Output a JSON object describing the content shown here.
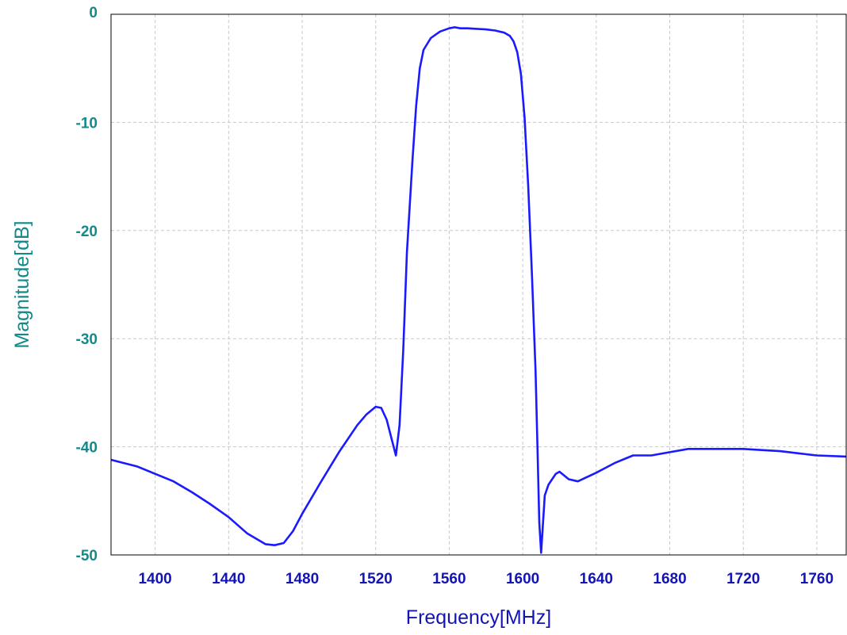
{
  "chart_data": {
    "type": "line",
    "title": "",
    "xlabel": "Frequency[MHz]",
    "ylabel": "Magnitude[dB]",
    "xlim": [
      1376,
      1776
    ],
    "ylim": [
      -50,
      0
    ],
    "x_ticks": [
      1400,
      1440,
      1480,
      1520,
      1560,
      1600,
      1640,
      1680,
      1720,
      1760
    ],
    "x_tick_labels": [
      "1400",
      "1440",
      "1480",
      "1520",
      "1560",
      "1600",
      "1640",
      "1680",
      "1720",
      "1760"
    ],
    "y_ticks": [
      0,
      -10,
      -20,
      -30,
      -40,
      -50
    ],
    "y_tick_labels": [
      "0",
      "-10",
      "-20",
      "-30",
      "-40",
      "-50"
    ],
    "grid": true,
    "legend": "none",
    "colors": {
      "line": "#1a1aff",
      "axis_text_x": "#1414b4",
      "axis_text_y": "#138a8a",
      "grid": "#c8c8c8",
      "frame": "#000000"
    },
    "series": [
      {
        "x": [
          1376,
          1390,
          1400,
          1410,
          1420,
          1430,
          1440,
          1450,
          1460,
          1465,
          1470,
          1475,
          1480,
          1490,
          1500,
          1510,
          1515,
          1520,
          1523,
          1526,
          1529,
          1531,
          1533,
          1535,
          1537,
          1540,
          1542,
          1544,
          1546,
          1550,
          1555,
          1560,
          1563,
          1566,
          1570,
          1575,
          1580,
          1585,
          1590,
          1593,
          1595,
          1597,
          1599,
          1601,
          1603,
          1605,
          1607,
          1608,
          1609,
          1610,
          1612,
          1614,
          1616,
          1618,
          1620,
          1625,
          1630,
          1640,
          1650,
          1660,
          1670,
          1680,
          1690,
          1700,
          1710,
          1720,
          1730,
          1740,
          1750,
          1760,
          1776
        ],
        "y": [
          -41.2,
          -41.8,
          -42.5,
          -43.2,
          -44.2,
          -45.3,
          -46.5,
          -48.0,
          -49.0,
          -49.1,
          -48.9,
          -47.8,
          -46.2,
          -43.3,
          -40.5,
          -38.0,
          -37.0,
          -36.3,
          -36.4,
          -37.5,
          -39.5,
          -40.8,
          -38.0,
          -31.0,
          -22.0,
          -13.5,
          -8.5,
          -5.0,
          -3.3,
          -2.2,
          -1.6,
          -1.3,
          -1.2,
          -1.3,
          -1.3,
          -1.35,
          -1.4,
          -1.5,
          -1.7,
          -2.0,
          -2.5,
          -3.5,
          -5.5,
          -9.5,
          -16.0,
          -24.0,
          -33.0,
          -40.0,
          -47.0,
          -49.8,
          -44.5,
          -43.5,
          -43.0,
          -42.5,
          -42.3,
          -43.0,
          -43.2,
          -42.4,
          -41.5,
          -40.8,
          -40.8,
          -40.5,
          -40.2,
          -40.2,
          -40.2,
          -40.2,
          -40.3,
          -40.4,
          -40.6,
          -40.8,
          -40.9
        ]
      }
    ]
  }
}
